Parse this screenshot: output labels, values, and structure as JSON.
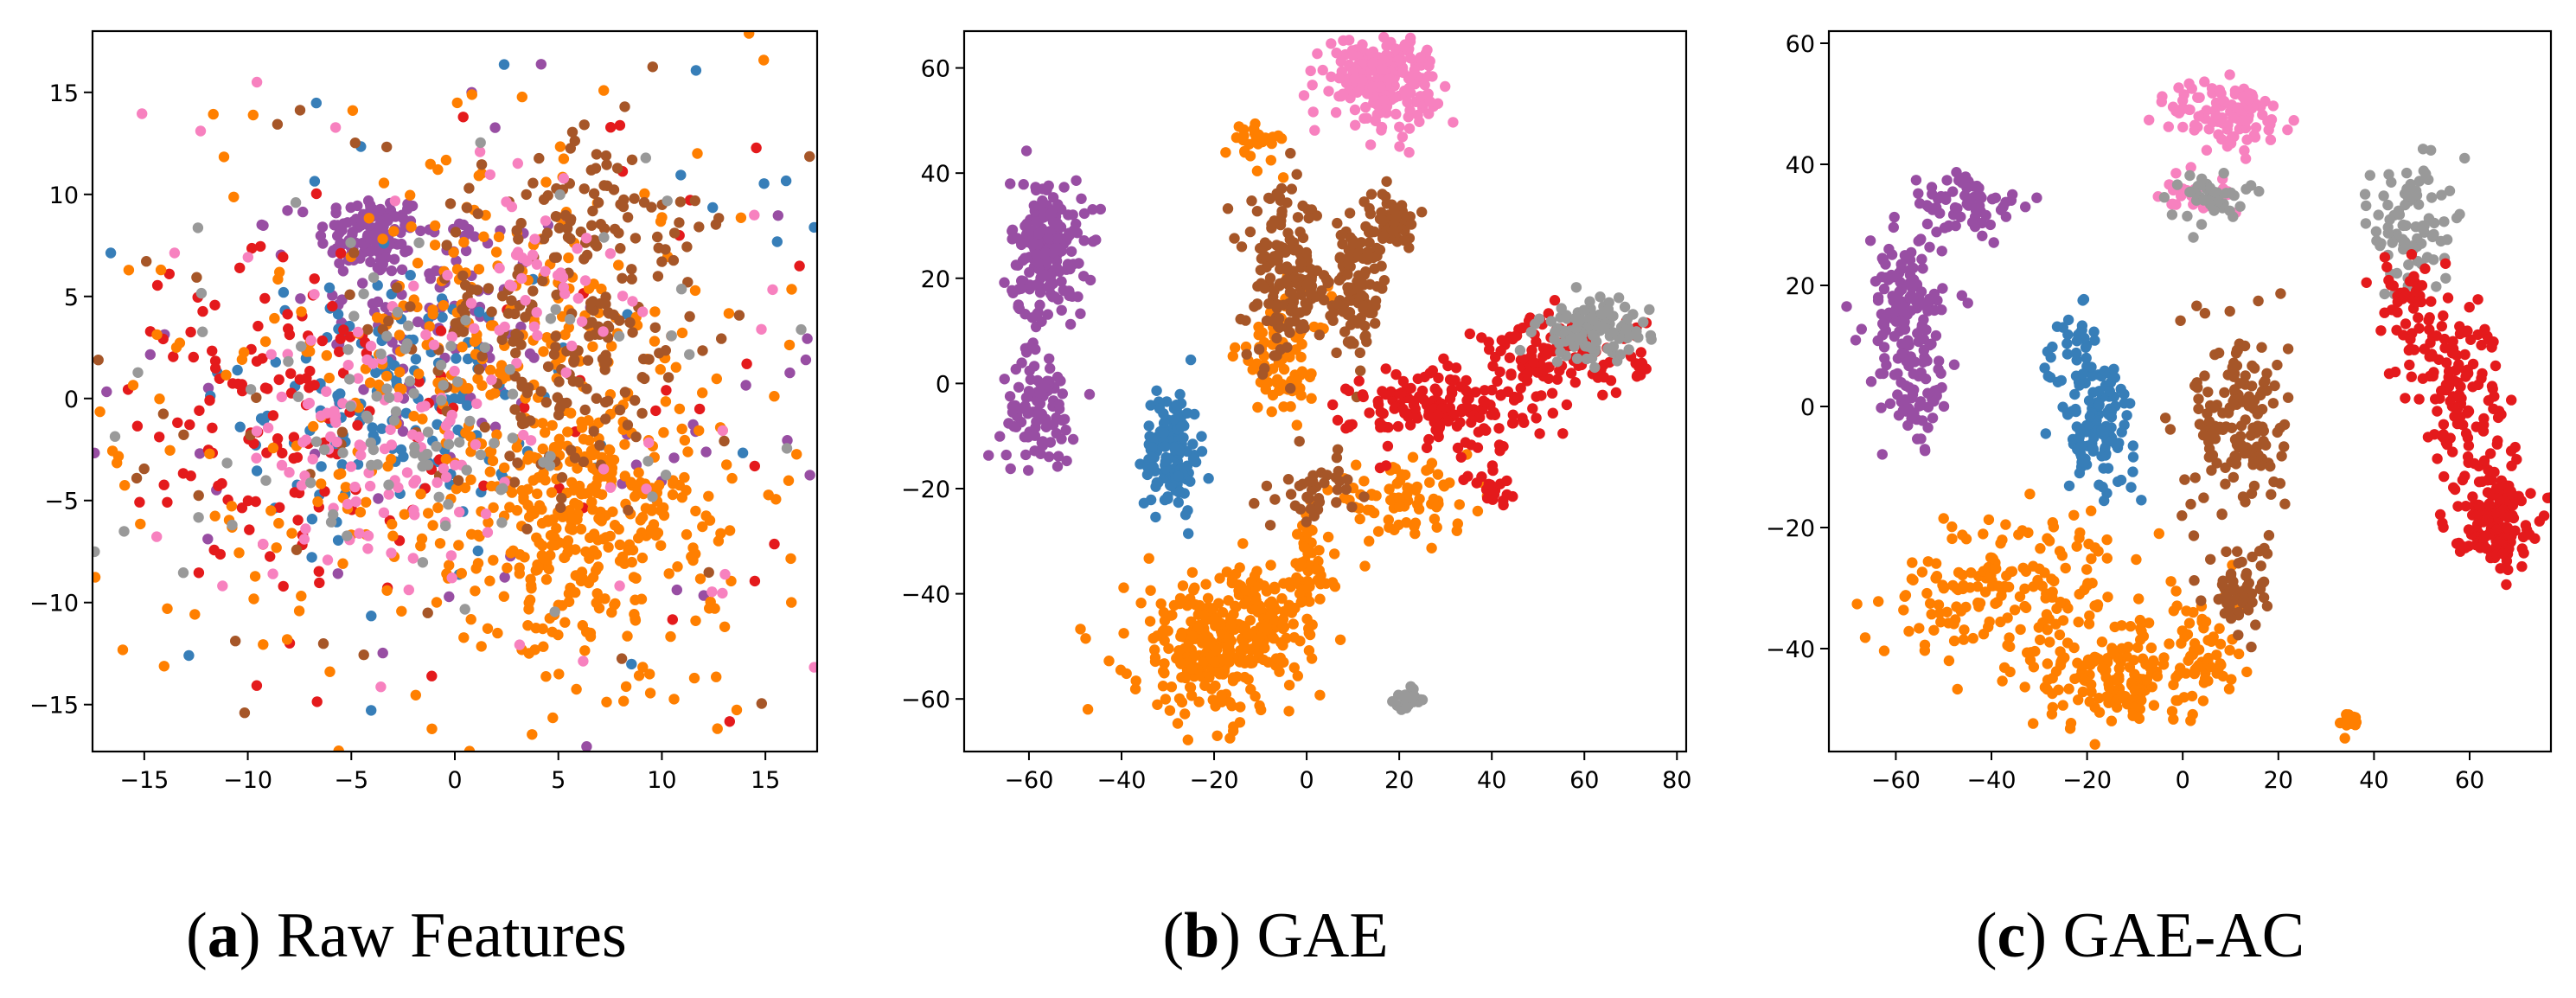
{
  "figure": {
    "palette": {
      "blue": "#377eb8",
      "orange": "#ff7f00",
      "purple": "#984ea3",
      "red": "#e41a1c",
      "brown": "#a65628",
      "pink": "#f781bf",
      "gray": "#999999"
    }
  },
  "chart_data": [
    {
      "type": "scatter",
      "title": "",
      "caption_letter": "a",
      "caption_text": "Raw Features",
      "xlim": [
        -17.5,
        17.5
      ],
      "ylim": [
        -17.3,
        18.0
      ],
      "xticks": [
        -15,
        -10,
        -5,
        0,
        5,
        10,
        15
      ],
      "yticks": [
        -15,
        -10,
        -5,
        0,
        5,
        10,
        15
      ],
      "series": [
        {
          "name": "purple",
          "color": "#984ea3",
          "clusters": [
            [
              -4,
              8,
              1.3,
              1.0,
              120
            ],
            [
              -1,
              4,
              3,
              3,
              90
            ],
            [
              0,
              0,
              10,
              9,
              70
            ]
          ]
        },
        {
          "name": "blue",
          "color": "#377eb8",
          "clusters": [
            [
              -3,
              0,
              3.5,
              3,
              130
            ],
            [
              0,
              0,
              10,
              9,
              40
            ]
          ]
        },
        {
          "name": "red",
          "color": "#e41a1c",
          "clusters": [
            [
              -8,
              -1,
              3.5,
              4,
              110
            ],
            [
              0,
              0,
              10,
              9,
              60
            ]
          ]
        },
        {
          "name": "orange",
          "color": "#ff7f00",
          "clusters": [
            [
              6,
              -6,
              2.5,
              2.5,
              180
            ],
            [
              5,
              -4,
              6,
              6,
              250
            ],
            [
              0,
              0,
              10,
              9,
              180
            ],
            [
              2,
              4,
              3,
              3,
              80
            ]
          ]
        },
        {
          "name": "brown",
          "color": "#a65628",
          "clusters": [
            [
              5,
              3,
              3.5,
              4,
              170
            ],
            [
              7,
              9,
              2,
              2,
              60
            ],
            [
              0,
              0,
              10,
              9,
              60
            ]
          ]
        },
        {
          "name": "pink",
          "color": "#f781bf",
          "clusters": [
            [
              -4,
              -2,
              3,
              3,
              90
            ],
            [
              4,
              6,
              2,
              2,
              40
            ],
            [
              0,
              0,
              10,
              9,
              50
            ]
          ]
        },
        {
          "name": "gray",
          "color": "#999999",
          "clusters": [
            [
              -2,
              -1,
              3,
              3,
              60
            ],
            [
              0,
              0,
              10,
              9,
              50
            ]
          ]
        }
      ]
    },
    {
      "type": "scatter",
      "title": "",
      "caption_letter": "b",
      "caption_text": "GAE",
      "xlim": [
        -74,
        82
      ],
      "ylim": [
        -70,
        67
      ],
      "xticks": [
        -60,
        -40,
        -20,
        0,
        20,
        40,
        60,
        80
      ],
      "yticks": [
        -60,
        -40,
        -20,
        0,
        20,
        40,
        60
      ],
      "series": [
        {
          "name": "purple",
          "color": "#984ea3",
          "clusters": [
            [
              -56,
              25,
              4,
              7,
              190
            ],
            [
              -58,
              -5,
              4,
              5,
              90
            ]
          ]
        },
        {
          "name": "blue",
          "color": "#377eb8",
          "clusters": [
            [
              -29,
              -13,
              3,
              6,
              130
            ]
          ]
        },
        {
          "name": "orange",
          "color": "#ff7f00",
          "clusters": [
            [
              -20,
              -50,
              9,
              7,
              280
            ],
            [
              -8,
              -45,
              4,
              4,
              70
            ],
            [
              0,
              -35,
              2.5,
              5,
              60
            ],
            [
              -5,
              5,
              5,
              6,
              80
            ],
            [
              20,
              -22,
              8,
              3,
              80
            ],
            [
              -10,
              46,
              3,
              2,
              30
            ]
          ]
        },
        {
          "name": "brown",
          "color": "#a65628",
          "clusters": [
            [
              -5,
              20,
              4,
              8,
              150
            ],
            [
              10,
              18,
              4,
              6,
              110
            ],
            [
              18,
              30,
              3,
              3,
              50
            ],
            [
              2,
              -20,
              4,
              3,
              40
            ]
          ]
        },
        {
          "name": "pink",
          "color": "#f781bf",
          "clusters": [
            [
              16,
              58,
              6,
              4,
              220
            ]
          ]
        },
        {
          "name": "red",
          "color": "#e41a1c",
          "clusters": [
            [
              30,
              -5,
              10,
              4,
              160
            ],
            [
              55,
              5,
              9,
              4,
              130
            ],
            [
              40,
              -20,
              3,
              2,
              20
            ]
          ]
        },
        {
          "name": "gray",
          "color": "#999999",
          "clusters": [
            [
              62,
              10,
              6,
              3,
              100
            ],
            [
              22,
              -60,
              1.5,
              1,
              25
            ]
          ]
        }
      ]
    },
    {
      "type": "scatter",
      "title": "",
      "caption_letter": "c",
      "caption_text": "GAE-AC",
      "xlim": [
        -74,
        77
      ],
      "ylim": [
        -57,
        62
      ],
      "xticks": [
        -60,
        -40,
        -20,
        0,
        20,
        40,
        60
      ],
      "yticks": [
        -40,
        -20,
        0,
        20,
        40,
        60
      ],
      "series": [
        {
          "name": "purple",
          "color": "#984ea3",
          "clusters": [
            [
              -58,
              15,
              4,
              6,
              140
            ],
            [
              -45,
              33,
              6,
              3,
              70
            ],
            [
              -55,
              0,
              3,
              4,
              40
            ]
          ]
        },
        {
          "name": "blue",
          "color": "#377eb8",
          "clusters": [
            [
              -18,
              -3,
              4,
              5,
              120
            ],
            [
              -23,
              10,
              3,
              3,
              30
            ]
          ]
        },
        {
          "name": "orange",
          "color": "#ff7f00",
          "clusters": [
            [
              -35,
              -30,
              14,
              6,
              190
            ],
            [
              -15,
              -45,
              8,
              4,
              140
            ],
            [
              5,
              -40,
              4,
              5,
              60
            ],
            [
              34,
              -52,
              1,
              1,
              15
            ]
          ]
        },
        {
          "name": "brown",
          "color": "#a65628",
          "clusters": [
            [
              12,
              -2,
              5,
              8,
              150
            ],
            [
              12,
              -30,
              3,
              4,
              60
            ]
          ]
        },
        {
          "name": "pink",
          "color": "#f781bf",
          "clusters": [
            [
              10,
              48,
              6,
              3,
              110
            ],
            [
              2,
              35,
              5,
              2,
              30
            ]
          ]
        },
        {
          "name": "gray",
          "color": "#999999",
          "clusters": [
            [
              48,
              30,
              4,
              6,
              90
            ],
            [
              5,
              35,
              4,
              2,
              40
            ]
          ]
        },
        {
          "name": "red",
          "color": "#e41a1c",
          "clusters": [
            [
              65,
              -18,
              4,
              4,
              150
            ],
            [
              58,
              2,
              5,
              7,
              110
            ],
            [
              48,
              15,
              4,
              7,
              60
            ]
          ]
        }
      ]
    }
  ]
}
